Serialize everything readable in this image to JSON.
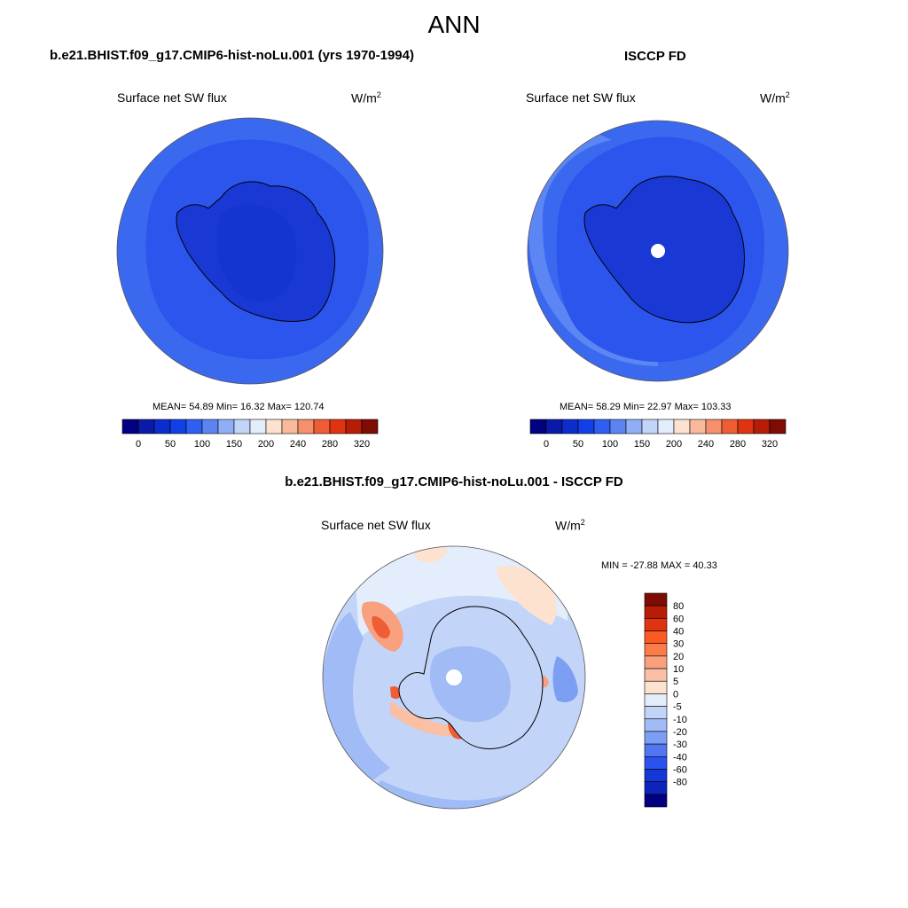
{
  "main_title": "ANN",
  "colors": {
    "seq": [
      "#000080",
      "#0a1aa8",
      "#0d2ccc",
      "#1140e6",
      "#2f5ff0",
      "#5c83f2",
      "#8faef5",
      "#c2d4f8",
      "#e4edfb",
      "#fde2d0",
      "#f9b99b",
      "#f68f6b",
      "#ee5d34",
      "#df3312",
      "#b51d06",
      "#7e0b04"
    ],
    "diff": [
      "#7e0b04",
      "#b51d06",
      "#df3312",
      "#fb5b23",
      "#fb7b4a",
      "#f9a07f",
      "#f9c0a5",
      "#fde2d0",
      "#e4edfb",
      "#c2d4f8",
      "#a0bbf5",
      "#7d9ff3",
      "#5276f1",
      "#2a52ee",
      "#1537d8",
      "#0c24b8",
      "#000080"
    ],
    "land_seq_model": "#0d2ccc",
    "land_seq_obs": "#0d2ccc",
    "ocean_seq": "#2f5ff0"
  },
  "panels": {
    "model": {
      "title": "b.e21.BHIST.f09_g17.CMIP6-hist-noLu.001 (yrs 1970-1994)",
      "variable": "Surface net SW flux",
      "units": "W/m",
      "units_sup": "2",
      "stats": "MEAN=  54.89  Min=  16.32  Max= 120.74"
    },
    "obs": {
      "title": "ISCCP FD",
      "variable": "Surface net SW flux",
      "units": "W/m",
      "units_sup": "2",
      "stats": "MEAN=  58.29  Min=  22.97  Max= 103.33"
    },
    "diff": {
      "title": "b.e21.BHIST.f09_g17.CMIP6-hist-noLu.001 - ISCCP FD",
      "variable": "Surface net SW flux",
      "units": "W/m",
      "units_sup": "2",
      "stats": "MIN = -27.88 MAX =  40.33"
    }
  },
  "chart_data": [
    {
      "type": "heatmap",
      "projection": "south-polar-stereographic",
      "title": "b.e21.BHIST.f09_g17.CMIP6-hist-noLu.001 (yrs 1970-1994)",
      "variable": "Surface net SW flux",
      "units": "W/m2",
      "mean": 54.89,
      "min": 16.32,
      "max": 120.74,
      "colorbar_levels": [
        0,
        50,
        100,
        150,
        200,
        240,
        280,
        320
      ],
      "colorbar_tick_labels": [
        "0",
        "50",
        "100",
        "150",
        "200",
        "240",
        "280",
        "320"
      ]
    },
    {
      "type": "heatmap",
      "projection": "south-polar-stereographic",
      "title": "ISCCP FD",
      "variable": "Surface net SW flux",
      "units": "W/m2",
      "mean": 58.29,
      "min": 22.97,
      "max": 103.33,
      "colorbar_levels": [
        0,
        50,
        100,
        150,
        200,
        240,
        280,
        320
      ],
      "colorbar_tick_labels": [
        "0",
        "50",
        "100",
        "150",
        "200",
        "240",
        "280",
        "320"
      ]
    },
    {
      "type": "heatmap",
      "projection": "south-polar-stereographic",
      "title": "b.e21.BHIST.f09_g17.CMIP6-hist-noLu.001 - ISCCP FD",
      "variable": "Surface net SW flux",
      "units": "W/m2",
      "min": -27.88,
      "max": 40.33,
      "colorbar_levels": [
        80,
        60,
        40,
        30,
        20,
        10,
        5,
        0,
        -5,
        -10,
        -20,
        -30,
        -40,
        -60,
        -80
      ],
      "colorbar_tick_labels": [
        "80",
        "60",
        "40",
        "30",
        "20",
        "10",
        "5",
        "0",
        "-5",
        "-10",
        "-20",
        "-30",
        "-40",
        "-60",
        "-80"
      ],
      "colorbar_orientation": "vertical"
    }
  ]
}
